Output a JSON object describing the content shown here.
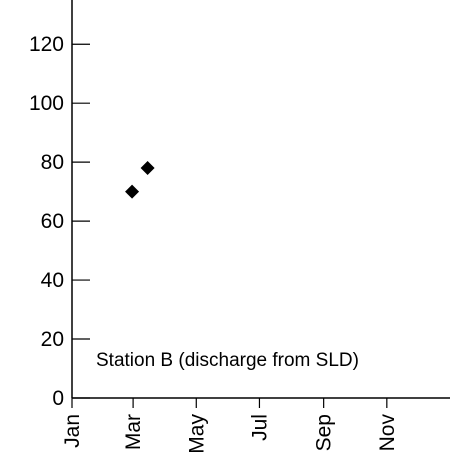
{
  "chart_data": {
    "type": "scatter",
    "annotation": "Station B (discharge from SLD)",
    "y_ticks": [
      "0",
      "20",
      "40",
      "60",
      "80",
      "100",
      "120"
    ],
    "x_ticks": [
      "Jan",
      "Mar",
      "May",
      "Jul",
      "Sep",
      "Nov"
    ],
    "x_tick_dates": [
      "01-01",
      "03-01",
      "05-01",
      "07-01",
      "09-01",
      "11-01"
    ],
    "xlim": [
      "01-01",
      "12-31"
    ],
    "ylim": [
      0,
      135
    ],
    "grid": false,
    "legend": "none",
    "marker": "diamond",
    "marker_color": "#000000",
    "series": [
      {
        "points": [
          {
            "x": "02-28",
            "y": 70
          },
          {
            "x": "03-15",
            "y": 78
          }
        ]
      }
    ]
  }
}
